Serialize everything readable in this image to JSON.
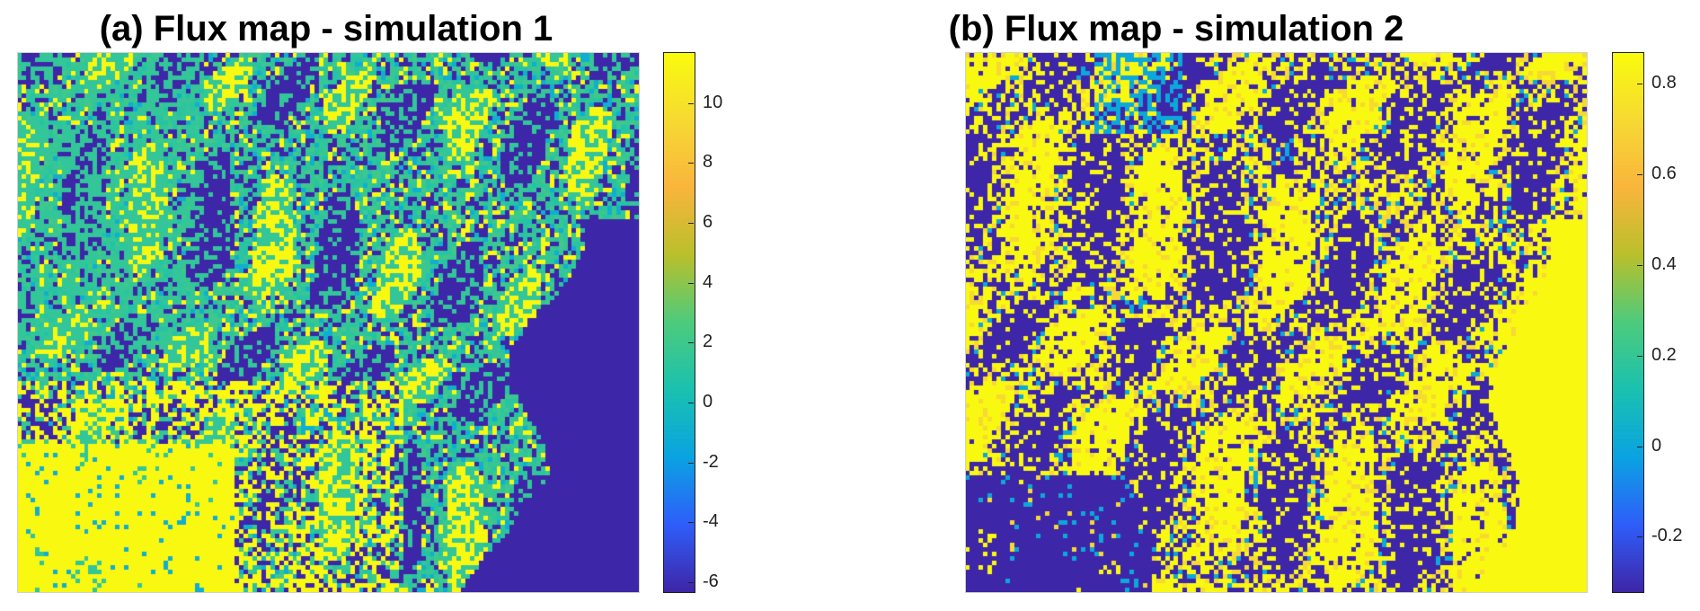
{
  "figure": {
    "panels": [
      {
        "title": "(a) Flux map - simulation 1"
      },
      {
        "title": "(b) Flux map - simulation 2"
      }
    ]
  },
  "colormap": [
    "#3e26a8",
    "#2f5efa",
    "#0aa3e2",
    "#1ac1b0",
    "#4dcb7d",
    "#b9c02b",
    "#f9b53c",
    "#f6d933",
    "#f9fb0e"
  ],
  "chart_data": [
    {
      "type": "heatmap",
      "title": "(a) Flux map - simulation 1",
      "grid_resolution": "approx. 140 x 120 cells, raster flux values",
      "clim": [
        -6.3,
        11.7
      ],
      "colorbar_ticks": [
        10,
        8,
        6,
        4,
        2,
        0,
        -2,
        -4,
        -6
      ],
      "colorbar_tick_labels": [
        "10",
        "8",
        "6",
        "4",
        "2",
        "0",
        "-2",
        "-4",
        "-6"
      ],
      "value_mix": [
        {
          "value": -6.3,
          "share": 0.4,
          "color": "#3e26a8"
        },
        {
          "value": 1.5,
          "share": 0.34,
          "color": "#1ab4c8"
        },
        {
          "value": 11.5,
          "share": 0.22,
          "color": "#f9fb0e"
        },
        {
          "value": -1.0,
          "share": 0.04,
          "color": "#2f8ae0"
        }
      ],
      "regions": {
        "right_edge_low_region": -6.3,
        "bottom_left_high_region": 11.5,
        "upper_left_mixed_region": 1.5
      }
    },
    {
      "type": "heatmap",
      "title": "(b) Flux map - simulation 2",
      "grid_resolution": "approx. 140 x 120 cells, raster flux values",
      "clim": [
        -0.32,
        0.87
      ],
      "colorbar_ticks": [
        0.8,
        0.6,
        0.4,
        0.2,
        0,
        -0.2
      ],
      "colorbar_tick_labels": [
        "0.8",
        "0.6",
        "0.4",
        "0.2",
        "0",
        "-0.2"
      ],
      "value_mix": [
        {
          "value": -0.32,
          "share": 0.5,
          "color": "#3e26a8"
        },
        {
          "value": 0.86,
          "share": 0.4,
          "color": "#f9fb0e"
        },
        {
          "value": 0.72,
          "share": 0.07,
          "color": "#f9b53c"
        },
        {
          "value": 0.0,
          "share": 0.03,
          "color": "#2f6efa"
        }
      ],
      "regions": {
        "right_edge_high_region": 0.86,
        "bottom_left_low_region": -0.32,
        "upper_mixed_region": 0.3
      }
    }
  ]
}
